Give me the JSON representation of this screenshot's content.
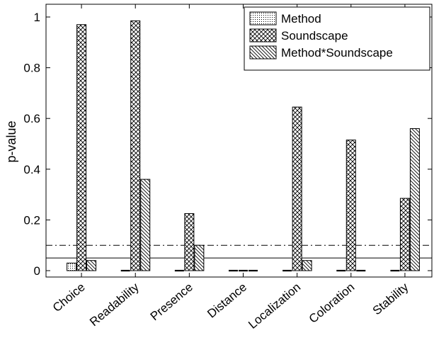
{
  "chart_data": {
    "type": "bar",
    "title": "",
    "xlabel": "",
    "ylabel": "p-value",
    "ylim": [
      0,
      1.05
    ],
    "yticks": [
      0,
      0.2,
      0.4,
      0.6,
      0.8,
      1
    ],
    "ytick_labels": [
      "0",
      "0.2",
      "0.4",
      "0.6",
      "0.8",
      "1"
    ],
    "categories": [
      "Choice",
      "Readability",
      "Presence",
      "Distance",
      "Localization",
      "Coloration",
      "Stability"
    ],
    "series": [
      {
        "name": "Method",
        "pattern": "dotted",
        "values": [
          0.03,
          0.003,
          0.0,
          0.0,
          0.004,
          0.0,
          0.0
        ]
      },
      {
        "name": "Soundscape",
        "pattern": "crosshatch",
        "values": [
          0.97,
          0.985,
          0.225,
          0.0,
          0.645,
          0.515,
          0.285
        ]
      },
      {
        "name": "Method*Soundscape",
        "pattern": "diagonal",
        "values": [
          0.04,
          0.36,
          0.1,
          0.0,
          0.04,
          0.004,
          0.56
        ]
      }
    ],
    "reference_lines": [
      {
        "value": 0.1,
        "style": "dash-dot"
      },
      {
        "value": 0.05,
        "style": "solid"
      }
    ],
    "legend_position": "top-right",
    "grid": false
  }
}
